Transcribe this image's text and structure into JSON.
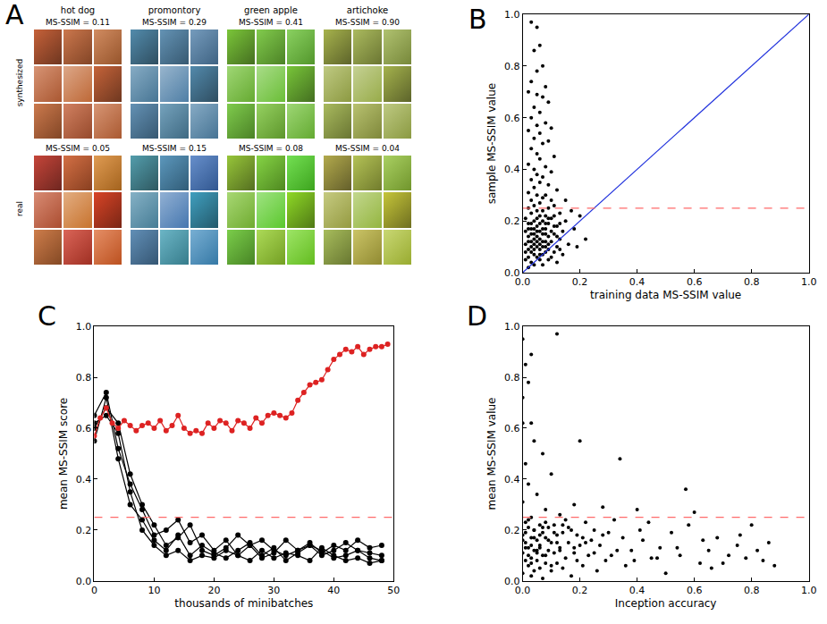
{
  "panel_a": {
    "label": "A",
    "row_labels": [
      "synthesized",
      "real"
    ],
    "columns": [
      {
        "name": "hot dog",
        "synthesized": "MS-SSIM = 0.11",
        "real": "MS-SSIM = 0.05"
      },
      {
        "name": "promontory",
        "synthesized": "MS-SSIM = 0.29",
        "real": "MS-SSIM = 0.15"
      },
      {
        "name": "green apple",
        "synthesized": "MS-SSIM = 0.41",
        "real": "MS-SSIM = 0.08"
      },
      {
        "name": "artichoke",
        "synthesized": "MS-SSIM = 0.90",
        "real": "MS-SSIM = 0.04"
      }
    ]
  },
  "chart_data": [
    {
      "label": "B",
      "type": "scatter",
      "grid": false,
      "xlabel": "training data MS-SSIM value",
      "ylabel": "sample MS-SSIM value",
      "xlim": [
        0,
        1
      ],
      "ylim": [
        0,
        1
      ],
      "xticks": [
        {
          "value": 0,
          "label": "0.0"
        },
        0.2,
        0.4,
        0.6,
        0.8,
        {
          "value": 1,
          "label": "1.0"
        }
      ],
      "yticks": [
        {
          "value": 0,
          "label": "0.0"
        },
        0.2,
        0.4,
        0.6,
        0.8,
        {
          "value": 1,
          "label": "1.0"
        }
      ],
      "series": [
        {
          "type": "scatter",
          "color": "#000000",
          "marker": "circle",
          "x": [
            0.03,
            0.05,
            0.06,
            0.04,
            0.07,
            0.05,
            0.03,
            0.08,
            0.02,
            0.05,
            0.07,
            0.09,
            0.04,
            0.06,
            0.03,
            0.08,
            0.05,
            0.1,
            0.02,
            0.06,
            0.04,
            0.09,
            0.07,
            0.03,
            0.05,
            0.11,
            0.06,
            0.02,
            0.08,
            0.04,
            0.1,
            0.05,
            0.07,
            0.03,
            0.06,
            0.09,
            0.04,
            0.12,
            0.02,
            0.08,
            0.05,
            0.07,
            0.03,
            0.1,
            0.06,
            0.04,
            0.11,
            0.09,
            0.02,
            0.05,
            0.07,
            0.13,
            0.03,
            0.08,
            0.06,
            0.01,
            0.1,
            0.04,
            0.15,
            0.07,
            0.02,
            0.09,
            0.05,
            0.12,
            0.03,
            0.08,
            0.06,
            0.14,
            0.01,
            0.11,
            0.04,
            0.07,
            0.09,
            0.02,
            0.05,
            0.13,
            0.06,
            0.03,
            0.1,
            0.08,
            0.04,
            0.16,
            0.01,
            0.07,
            0.12,
            0.05,
            0.02,
            0.09,
            0.06,
            0.11,
            0.03,
            0.08,
            0.04,
            0.14,
            0.07,
            0.02,
            0.1,
            0.05,
            0.01,
            0.06,
            0.09,
            0.03,
            0.12,
            0.04,
            0.07,
            0.02,
            0.2,
            0.18,
            0.22,
            0.17,
            0.19,
            0.15,
            0.13,
            0.11,
            0.06,
            0.08,
            0.04,
            0.05,
            0.03,
            0.07,
            0.09,
            0.02,
            0.06,
            0.1,
            0.12,
            0.04,
            0.08,
            0.05,
            0.03,
            0.07,
            0.01,
            0.09,
            0.11,
            0.06,
            0.02,
            0.13,
            0.05,
            0.04,
            0.08,
            0.03
          ],
          "values": [
            0.97,
            0.95,
            0.88,
            0.86,
            0.8,
            0.78,
            0.74,
            0.72,
            0.7,
            0.69,
            0.68,
            0.66,
            0.64,
            0.62,
            0.6,
            0.58,
            0.57,
            0.56,
            0.55,
            0.54,
            0.52,
            0.51,
            0.5,
            0.48,
            0.46,
            0.45,
            0.44,
            0.42,
            0.41,
            0.4,
            0.39,
            0.38,
            0.37,
            0.36,
            0.35,
            0.34,
            0.33,
            0.32,
            0.31,
            0.3,
            0.3,
            0.29,
            0.28,
            0.28,
            0.27,
            0.26,
            0.26,
            0.25,
            0.25,
            0.24,
            0.24,
            0.23,
            0.23,
            0.22,
            0.22,
            0.21,
            0.21,
            0.2,
            0.2,
            0.2,
            0.19,
            0.19,
            0.18,
            0.18,
            0.17,
            0.17,
            0.16,
            0.16,
            0.16,
            0.15,
            0.15,
            0.15,
            0.14,
            0.14,
            0.14,
            0.13,
            0.13,
            0.12,
            0.12,
            0.12,
            0.11,
            0.11,
            0.11,
            0.1,
            0.1,
            0.1,
            0.09,
            0.09,
            0.09,
            0.08,
            0.08,
            0.08,
            0.07,
            0.07,
            0.07,
            0.06,
            0.06,
            0.06,
            0.05,
            0.05,
            0.05,
            0.04,
            0.04,
            0.03,
            0.03,
            0.02,
            0.22,
            0.17,
            0.13,
            0.24,
            0.1,
            0.28,
            0.19,
            0.22,
            0.19,
            0.15,
            0.13,
            0.21,
            0.15,
            0.17,
            0.11,
            0.12,
            0.11,
            0.16,
            0.14,
            0.17,
            0.19,
            0.12,
            0.1,
            0.12,
            0.08,
            0.21,
            0.18,
            0.07,
            0.17,
            0.09,
            0.16,
            0.09,
            0.1,
            0.19
          ]
        },
        {
          "type": "line",
          "color": "#2233dd",
          "line_style": "solid",
          "x": [
            0,
            1
          ],
          "values": [
            0,
            1
          ]
        },
        {
          "type": "line",
          "color": "#ff6b6b",
          "line_style": "dashed",
          "x": [
            0,
            1
          ],
          "values": [
            0.25,
            0.25
          ]
        }
      ]
    },
    {
      "label": "C",
      "type": "line",
      "grid": false,
      "xlabel": "thousands of minibatches",
      "ylabel": "mean MS-SSIM score",
      "xlim": [
        0,
        50
      ],
      "ylim": [
        0,
        1
      ],
      "xticks": [
        0,
        10,
        20,
        30,
        40,
        50
      ],
      "yticks": [
        {
          "value": 0,
          "label": "0.0"
        },
        0.2,
        0.4,
        0.6,
        0.8,
        {
          "value": 1,
          "label": "1.0"
        }
      ],
      "series": [
        {
          "type": "line",
          "color": "#000000",
          "marker": "circle",
          "line_style": "solid",
          "x": [
            0,
            2,
            4,
            6,
            8,
            10,
            12,
            14,
            16,
            18,
            20,
            22,
            24,
            26,
            28,
            30,
            32,
            34,
            36,
            38,
            40,
            42,
            44,
            46,
            48
          ],
          "values": [
            0.65,
            0.74,
            0.52,
            0.38,
            0.28,
            0.18,
            0.2,
            0.24,
            0.15,
            0.18,
            0.12,
            0.16,
            0.1,
            0.14,
            0.16,
            0.12,
            0.1,
            0.12,
            0.15,
            0.11,
            0.14,
            0.12,
            0.16,
            0.13,
            0.14
          ]
        },
        {
          "type": "line",
          "color": "#000000",
          "marker": "circle",
          "line_style": "solid",
          "x": [
            0,
            2,
            4,
            6,
            8,
            10,
            12,
            14,
            16,
            18,
            20,
            22,
            24,
            26,
            28,
            30,
            32,
            34,
            36,
            38,
            40,
            42,
            44,
            46,
            48
          ],
          "values": [
            0.6,
            0.68,
            0.62,
            0.42,
            0.3,
            0.22,
            0.14,
            0.17,
            0.22,
            0.12,
            0.1,
            0.13,
            0.18,
            0.14,
            0.09,
            0.11,
            0.16,
            0.12,
            0.14,
            0.1,
            0.12,
            0.15,
            0.12,
            0.09,
            0.08
          ]
        },
        {
          "type": "line",
          "color": "#000000",
          "marker": "circle",
          "line_style": "solid",
          "x": [
            0,
            2,
            4,
            6,
            8,
            10,
            12,
            14,
            16,
            18,
            20,
            22,
            24,
            26,
            28,
            30,
            32,
            34,
            36,
            38,
            40,
            42,
            44,
            46,
            48
          ],
          "values": [
            0.55,
            0.72,
            0.48,
            0.3,
            0.24,
            0.16,
            0.12,
            0.18,
            0.1,
            0.14,
            0.11,
            0.09,
            0.12,
            0.15,
            0.1,
            0.13,
            0.08,
            0.11,
            0.14,
            0.12,
            0.09,
            0.1,
            0.12,
            0.11,
            0.1
          ]
        },
        {
          "type": "line",
          "color": "#000000",
          "marker": "circle",
          "line_style": "solid",
          "x": [
            0,
            2,
            4,
            6,
            8,
            10,
            12,
            14,
            16,
            18,
            20,
            22,
            24,
            26,
            28,
            30,
            32,
            34,
            36,
            38,
            40,
            42,
            44,
            46,
            48
          ],
          "values": [
            0.62,
            0.65,
            0.58,
            0.35,
            0.2,
            0.14,
            0.1,
            0.12,
            0.08,
            0.1,
            0.09,
            0.12,
            0.1,
            0.08,
            0.12,
            0.09,
            0.11,
            0.1,
            0.08,
            0.13,
            0.1,
            0.08,
            0.09,
            0.07,
            0.08
          ]
        },
        {
          "type": "line",
          "color": "#dd2222",
          "marker": "circle",
          "line_style": "solid",
          "x": [
            0,
            1,
            2,
            3,
            4,
            5,
            6,
            7,
            8,
            9,
            10,
            11,
            12,
            13,
            14,
            15,
            16,
            17,
            18,
            19,
            20,
            21,
            22,
            23,
            24,
            25,
            26,
            27,
            28,
            29,
            30,
            31,
            32,
            33,
            34,
            35,
            36,
            37,
            38,
            39,
            40,
            41,
            42,
            43,
            44,
            45,
            46,
            47,
            48,
            49
          ],
          "values": [
            0.57,
            0.64,
            0.68,
            0.62,
            0.6,
            0.63,
            0.61,
            0.59,
            0.61,
            0.62,
            0.6,
            0.63,
            0.59,
            0.61,
            0.65,
            0.6,
            0.58,
            0.59,
            0.58,
            0.62,
            0.6,
            0.63,
            0.62,
            0.59,
            0.63,
            0.62,
            0.6,
            0.64,
            0.62,
            0.65,
            0.66,
            0.65,
            0.64,
            0.66,
            0.71,
            0.74,
            0.77,
            0.78,
            0.79,
            0.83,
            0.87,
            0.89,
            0.91,
            0.9,
            0.92,
            0.89,
            0.91,
            0.92,
            0.92,
            0.93
          ]
        },
        {
          "type": "line",
          "color": "#ff6b6b",
          "line_style": "dashed",
          "x": [
            0,
            50
          ],
          "values": [
            0.25,
            0.25
          ]
        }
      ]
    },
    {
      "label": "D",
      "type": "scatter",
      "grid": false,
      "xlabel": "Inception accuracy",
      "ylabel": "mean MS-SSIM value",
      "xlim": [
        0,
        1
      ],
      "ylim": [
        0,
        1
      ],
      "xticks": [
        {
          "value": 0,
          "label": "0.0"
        },
        0.2,
        0.4,
        0.6,
        0.8,
        {
          "value": 1,
          "label": "1.0"
        }
      ],
      "yticks": [
        {
          "value": 0,
          "label": "0.0"
        },
        0.2,
        0.4,
        0.6,
        0.8,
        {
          "value": 1,
          "label": "1.0"
        }
      ],
      "series": [
        {
          "type": "scatter",
          "color": "#000000",
          "marker": "circle",
          "x": [
            0.0,
            0.01,
            0.03,
            0.12,
            0.0,
            0.03,
            0.2,
            0.34,
            0.57,
            0.02,
            0.0,
            0.04,
            0.07,
            0.01,
            0.1,
            0.28,
            0.4,
            0.6,
            0.18,
            0.02,
            0.05,
            0.0,
            0.08,
            0.13,
            0.03,
            0.15,
            0.22,
            0.01,
            0.06,
            0.11,
            0.02,
            0.09,
            0.17,
            0.25,
            0.04,
            0.14,
            0.3,
            0.07,
            0.0,
            0.19,
            0.12,
            0.35,
            0.03,
            0.08,
            0.24,
            0.05,
            0.42,
            0.16,
            0.01,
            0.1,
            0.27,
            0.06,
            0.2,
            0.48,
            0.02,
            0.13,
            0.33,
            0.09,
            0.04,
            0.38,
            0.18,
            0.0,
            0.11,
            0.55,
            0.07,
            0.23,
            0.03,
            0.45,
            0.15,
            0.05,
            0.29,
            0.01,
            0.12,
            0.62,
            0.08,
            0.36,
            0.02,
            0.21,
            0.06,
            0.14,
            0.04,
            0.1,
            0.5,
            0.0,
            0.17,
            0.03,
            0.07,
            0.26,
            0.65,
            0.68,
            0.72,
            0.75,
            0.78,
            0.8,
            0.84,
            0.86,
            0.88,
            0.52,
            0.58,
            0.44,
            0.47,
            0.7,
            0.63,
            0.32,
            0.39,
            0.54,
            0.41,
            0.76,
            0.66,
            0.82,
            0.01,
            0.03,
            0.02,
            0.05,
            0.04,
            0.07,
            0.06,
            0.09,
            0.08,
            0.11,
            0.13,
            0.16,
            0.19,
            0.22,
            0.14,
            0.25,
            0.28,
            0.31,
            0.18,
            0.21,
            0.0,
            0.02,
            0.01,
            0.04,
            0.03,
            0.06,
            0.05,
            0.08,
            0.12,
            0.1
          ],
          "values": [
            0.95,
            0.85,
            0.89,
            0.97,
            0.62,
            0.62,
            0.55,
            0.48,
            0.36,
            0.78,
            0.72,
            0.55,
            0.5,
            0.46,
            0.42,
            0.29,
            0.28,
            0.27,
            0.3,
            0.38,
            0.34,
            0.31,
            0.28,
            0.26,
            0.25,
            0.24,
            0.23,
            0.23,
            0.22,
            0.22,
            0.21,
            0.21,
            0.2,
            0.2,
            0.2,
            0.19,
            0.19,
            0.19,
            0.18,
            0.18,
            0.18,
            0.17,
            0.17,
            0.17,
            0.16,
            0.16,
            0.16,
            0.15,
            0.15,
            0.15,
            0.14,
            0.14,
            0.14,
            0.13,
            0.13,
            0.13,
            0.12,
            0.12,
            0.12,
            0.12,
            0.11,
            0.11,
            0.11,
            0.1,
            0.1,
            0.1,
            0.09,
            0.09,
            0.09,
            0.08,
            0.08,
            0.08,
            0.07,
            0.07,
            0.07,
            0.06,
            0.06,
            0.06,
            0.05,
            0.05,
            0.04,
            0.04,
            0.03,
            0.03,
            0.02,
            0.02,
            0.01,
            0.04,
            0.12,
            0.17,
            0.1,
            0.14,
            0.09,
            0.22,
            0.08,
            0.15,
            0.06,
            0.19,
            0.22,
            0.23,
            0.09,
            0.07,
            0.16,
            0.24,
            0.08,
            0.13,
            0.2,
            0.18,
            0.05,
            0.12,
            0.19,
            0.14,
            0.24,
            0.11,
            0.17,
            0.21,
            0.13,
            0.16,
            0.1,
            0.19,
            0.12,
            0.21,
            0.08,
            0.15,
            0.22,
            0.11,
            0.18,
            0.1,
            0.13,
            0.17,
            0.16,
            0.1,
            0.13,
            0.2,
            0.07,
            0.18,
            0.12,
            0.23,
            0.15,
            0.06
          ]
        },
        {
          "type": "line",
          "color": "#ff6b6b",
          "line_style": "dashed",
          "x": [
            0,
            1
          ],
          "values": [
            0.25,
            0.25
          ]
        }
      ]
    }
  ]
}
